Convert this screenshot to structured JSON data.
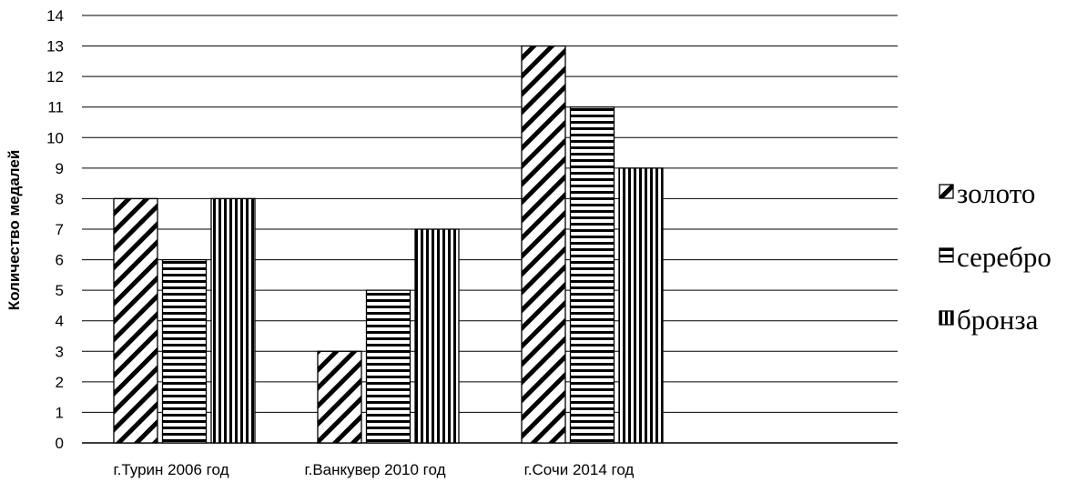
{
  "chart_data": {
    "type": "bar",
    "title": "",
    "xlabel": "",
    "ylabel": "Количество медалей",
    "ylim": [
      0,
      14
    ],
    "yticks": [
      0,
      1,
      2,
      3,
      4,
      5,
      6,
      7,
      8,
      9,
      10,
      11,
      12,
      13,
      14
    ],
    "grid": true,
    "legend_position": "right",
    "categories": [
      "г.Турин 2006 год",
      "г.Ванкувер 2010 год",
      "г.Сочи 2014 год"
    ],
    "series": [
      {
        "name": "золото",
        "values": [
          8,
          3,
          13
        ],
        "pattern": "diagonal-hatch"
      },
      {
        "name": "серебро",
        "values": [
          6,
          5,
          11
        ],
        "pattern": "horizontal-stripes"
      },
      {
        "name": "бронза",
        "values": [
          8,
          7,
          9
        ],
        "pattern": "vertical-stripes"
      }
    ]
  }
}
